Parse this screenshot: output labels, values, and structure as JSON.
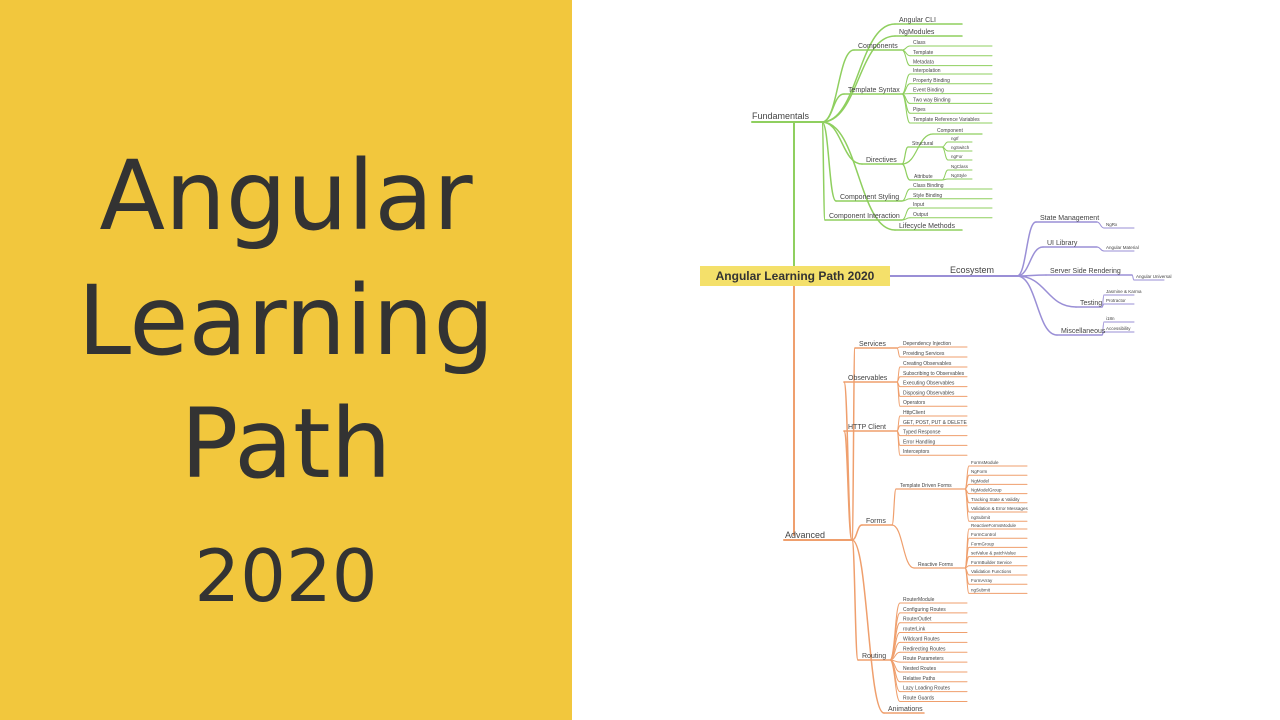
{
  "slide": {
    "title_line1": "Angular",
    "title_line2": "Learning",
    "title_line3": "Path",
    "year": "2020",
    "background_color": "#f2c73d",
    "text_color": "#333333"
  },
  "mindmap": {
    "root": "Angular Learning Path 2020",
    "branches": [
      {
        "label": "Fundamentals",
        "color": "#8fcf5f",
        "children": [
          {
            "label": "Angular CLI"
          },
          {
            "label": "NgModules"
          },
          {
            "label": "Components",
            "children": [
              "Class",
              "Template",
              "Metadata"
            ]
          },
          {
            "label": "Template Syntax",
            "children": [
              "Interpolation",
              "Property Binding",
              "Event Binding",
              "Two way Binding",
              "Pipes",
              "Template Reference Variables"
            ]
          },
          {
            "label": "Directives",
            "children": [
              {
                "label": "Component"
              },
              {
                "label": "Structural",
                "children": [
                  "ngIf",
                  "ngSwitch",
                  "ngFor"
                ]
              },
              {
                "label": "Attribute",
                "children": [
                  "NgClass",
                  "NgStyle"
                ]
              }
            ]
          },
          {
            "label": "Component Styling",
            "children": [
              "Class Binding",
              "Style Binding"
            ]
          },
          {
            "label": "Component Interaction",
            "children": [
              "Input",
              "Output"
            ]
          },
          {
            "label": "Lifecycle Methods"
          }
        ]
      },
      {
        "label": "Ecosystem",
        "color": "#9a8fd6",
        "children": [
          {
            "label": "State Management",
            "children": [
              "NgRx"
            ]
          },
          {
            "label": "UI Library",
            "children": [
              "Angular Material"
            ]
          },
          {
            "label": "Server Side Rendering",
            "children": [
              "Angular Universal"
            ]
          },
          {
            "label": "Testing",
            "children": [
              "Jasmine & Karma",
              "Protractor"
            ]
          },
          {
            "label": "Miscellaneous",
            "children": [
              "i18n",
              "Accessibility"
            ]
          }
        ]
      },
      {
        "label": "Advanced",
        "color": "#ef9f6d",
        "children": [
          {
            "label": "Services",
            "children": [
              "Dependency Injection",
              "Providing Services"
            ]
          },
          {
            "label": "Observables",
            "children": [
              "Creating Observables",
              "Subscribing to Observables",
              "Executing Observables",
              "Disposing Observables",
              "Operators"
            ]
          },
          {
            "label": "HTTP Client",
            "children": [
              "HttpClient",
              "GET, POST, PUT & DELETE",
              "Typed Response",
              "Error Handling",
              "Interceptors"
            ]
          },
          {
            "label": "Forms",
            "children": [
              {
                "label": "Template Driven Forms",
                "children": [
                  "FormsModule",
                  "NgForm",
                  "NgModel",
                  "NgModelGroup",
                  "Tracking State & Validity",
                  "Validation & Error Messages",
                  "ngSubmit"
                ]
              },
              {
                "label": "Reactive Forms",
                "children": [
                  "ReactiveFormsModule",
                  "FormControl",
                  "FormGroup",
                  "setValue & patchValue",
                  "FormBuilder Service",
                  "Validation Functions",
                  "FormArray",
                  "ngSubmit"
                ]
              }
            ]
          },
          {
            "label": "Routing",
            "children": [
              "RouterModule",
              "Configuring Routes",
              "RouterOutlet",
              "routerLink",
              "Wildcard Routes",
              "Redirecting Routes",
              "Route Parameters",
              "Nested Routes",
              "Relative Paths",
              "Lazy Loading Routes",
              "Route Guards"
            ]
          },
          {
            "label": "Animations"
          }
        ]
      }
    ]
  }
}
